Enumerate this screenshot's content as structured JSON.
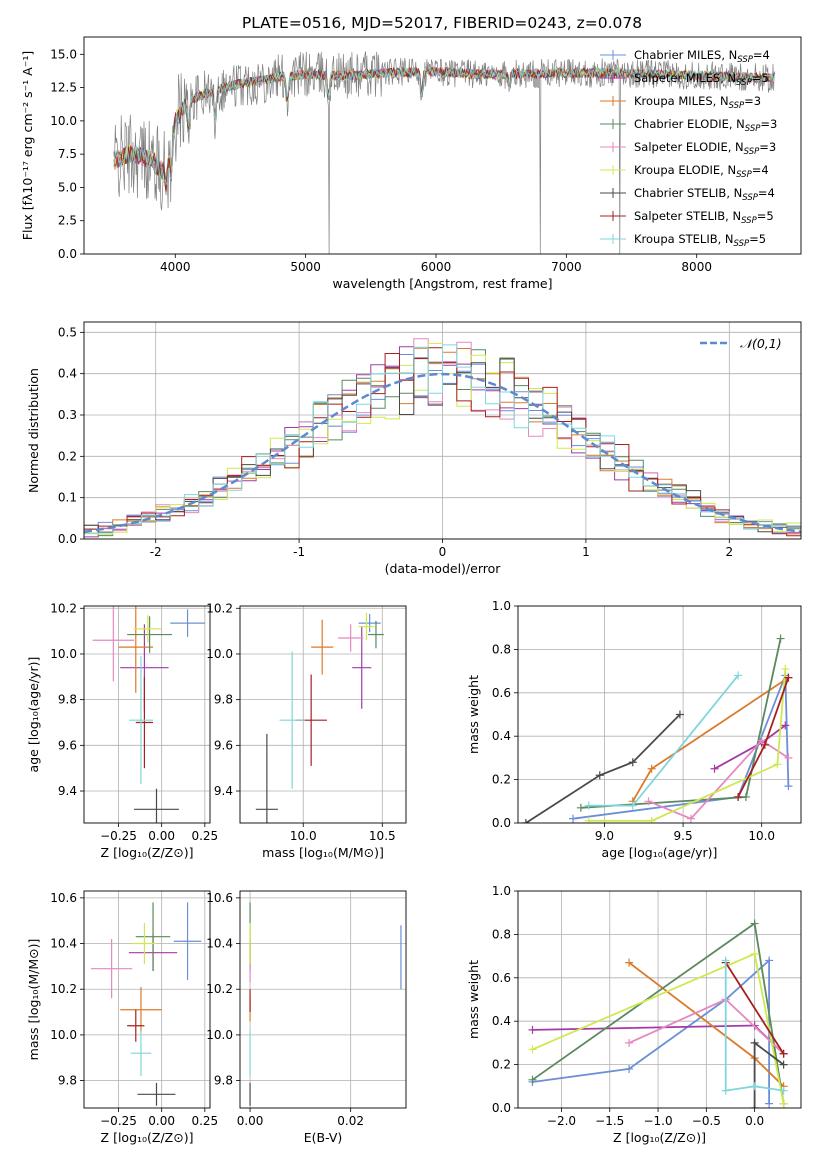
{
  "colors": {
    "Chabrier MILES": "#6a8fd8",
    "Salpeter MILES": "#a23aa8",
    "Kroupa MILES": "#db7a2a",
    "Chabrier ELODIE": "#5a8a5e",
    "Salpeter ELODIE": "#e589c0",
    "Kroupa ELODIE": "#d0e850",
    "Chabrier STELIB": "#4a4a4a",
    "Salpeter STELIB": "#a52020",
    "Kroupa STELIB": "#7fd6dc"
  },
  "chart_data": [
    {
      "id": "spectrum",
      "type": "line",
      "title": "PLATE=0516, MJD=52017, FIBERID=0243, z=0.078",
      "xlabel": "wavelength [Angstrom, rest frame]",
      "ylabel": "Flux [fλ10⁻¹⁷ erg cm⁻² s⁻¹ A⁻¹]",
      "xlim": [
        3300,
        8800
      ],
      "ylim": [
        0,
        16.3
      ],
      "xticks": [
        4000,
        5000,
        6000,
        7000,
        8000
      ],
      "yticks": [
        0.0,
        2.5,
        5.0,
        7.5,
        10.0,
        12.5,
        15.0
      ],
      "legend_position": "upper-right",
      "legend": [
        {
          "name": "Chabrier MILES, N",
          "sub": "SSP",
          "tail": "=4"
        },
        {
          "name": "Salpeter MILES, N",
          "sub": "SSP",
          "tail": "=5"
        },
        {
          "name": "Kroupa MILES, N",
          "sub": "SSP",
          "tail": "=3"
        },
        {
          "name": "Chabrier ELODIE, N",
          "sub": "SSP",
          "tail": "=3"
        },
        {
          "name": "Salpeter ELODIE, N",
          "sub": "SSP",
          "tail": "=3"
        },
        {
          "name": "Kroupa ELODIE, N",
          "sub": "SSP",
          "tail": "=4"
        },
        {
          "name": "Chabrier STELIB, N",
          "sub": "SSP",
          "tail": "=4"
        },
        {
          "name": "Salpeter STELIB, N",
          "sub": "SSP",
          "tail": "=5"
        },
        {
          "name": "Kroupa STELIB, N",
          "sub": "SSP",
          "tail": "=5"
        }
      ],
      "continuum": [
        [
          3530,
          7.0
        ],
        [
          3650,
          7.5
        ],
        [
          3800,
          7.2
        ],
        [
          3930,
          6.0
        ],
        [
          4000,
          10.0
        ],
        [
          4100,
          11.5
        ],
        [
          4300,
          12.3
        ],
        [
          4500,
          12.8
        ],
        [
          4800,
          13.3
        ],
        [
          5000,
          13.5
        ],
        [
          5300,
          13.4
        ],
        [
          5600,
          13.6
        ],
        [
          6000,
          13.7
        ],
        [
          6300,
          13.5
        ],
        [
          6600,
          13.5
        ],
        [
          7000,
          13.6
        ],
        [
          7400,
          13.6
        ],
        [
          8000,
          13.4
        ],
        [
          8600,
          13.2
        ]
      ],
      "absorption_lines": [
        [
          3934,
          5.5
        ],
        [
          3969,
          6.0
        ],
        [
          4102,
          9.5
        ],
        [
          4304,
          10.3
        ],
        [
          4861,
          11.5
        ],
        [
          5175,
          11.8
        ],
        [
          5890,
          12.0
        ],
        [
          6563,
          12.5
        ]
      ],
      "masked_drops": [
        5180,
        6800,
        7410
      ]
    },
    {
      "id": "residuals",
      "type": "bar",
      "xlabel": "(data-model)/error",
      "ylabel": "Normed distribution",
      "xlim": [
        -2.5,
        2.5
      ],
      "ylim": [
        0,
        0.525
      ],
      "xticks": [
        -2,
        -1,
        0,
        1,
        2
      ],
      "yticks": [
        0.0,
        0.1,
        0.2,
        0.3,
        0.4,
        0.5
      ],
      "legend": "𝒩(0,1)",
      "legend_position": "upper-right",
      "bin_width": 0.1,
      "reference": {
        "name": "N(0,1)",
        "mean": 0,
        "sigma": 1
      }
    },
    {
      "id": "age_vs_Z",
      "type": "scatter",
      "xlabel": "Z [log₁₀(Z/Z⊙)]",
      "ylabel": "age  [log₁₀(age/yr)]",
      "xlim": [
        -0.45,
        0.28
      ],
      "ylim": [
        9.26,
        10.21
      ],
      "xticks": [
        -0.25,
        0.0,
        0.25
      ],
      "xticklabels": [
        "−0.25",
        "0.00",
        "0.25"
      ],
      "yticks": [
        9.4,
        9.6,
        9.8,
        10.0,
        10.2
      ],
      "points": [
        {
          "library": "Chabrier MILES",
          "x": 0.15,
          "xerr": 0.1,
          "y": 10.135,
          "yerr": 0.06
        },
        {
          "library": "Salpeter MILES",
          "x": -0.1,
          "xerr": 0.14,
          "y": 9.94,
          "yerr": 0.19
        },
        {
          "library": "Kroupa MILES",
          "x": -0.15,
          "xerr": 0.1,
          "y": 10.03,
          "yerr": 0.2
        },
        {
          "library": "Chabrier ELODIE",
          "x": -0.07,
          "xerr": 0.13,
          "y": 10.085,
          "yerr": 0.08
        },
        {
          "library": "Salpeter ELODIE",
          "x": -0.28,
          "xerr": 0.12,
          "y": 10.06,
          "yerr": 0.18
        },
        {
          "library": "Kroupa ELODIE",
          "x": -0.08,
          "xerr": 0.08,
          "y": 10.11,
          "yerr": 0.06
        },
        {
          "library": "Chabrier STELIB",
          "x": -0.03,
          "xerr": 0.13,
          "y": 9.32,
          "yerr": 0.09
        },
        {
          "library": "Salpeter STELIB",
          "x": -0.1,
          "xerr": 0.05,
          "y": 9.7,
          "yerr": 0.2
        },
        {
          "library": "Kroupa STELIB",
          "x": -0.12,
          "xerr": 0.07,
          "y": 9.71,
          "yerr": 0.28
        }
      ]
    },
    {
      "id": "age_vs_mass",
      "type": "scatter",
      "xlabel": "mass [log₁₀(M/M⊙)]",
      "ylabel": "",
      "xlim": [
        9.6,
        10.65
      ],
      "ylim": [
        9.26,
        10.21
      ],
      "xticks": [
        10.0,
        10.5
      ],
      "xticklabels": [
        "10.0",
        "10.5"
      ],
      "yticks": [
        9.4,
        9.6,
        9.8,
        10.0,
        10.2
      ],
      "points": [
        {
          "library": "Chabrier MILES",
          "x": 10.42,
          "xerr": 0.07,
          "y": 10.135,
          "yerr": 0.04
        },
        {
          "library": "Salpeter MILES",
          "x": 10.37,
          "xerr": 0.06,
          "y": 9.94,
          "yerr": 0.18
        },
        {
          "library": "Kroupa MILES",
          "x": 10.12,
          "xerr": 0.07,
          "y": 10.03,
          "yerr": 0.12
        },
        {
          "library": "Chabrier ELODIE",
          "x": 10.46,
          "xerr": 0.05,
          "y": 10.085,
          "yerr": 0.06
        },
        {
          "library": "Salpeter ELODIE",
          "x": 10.3,
          "xerr": 0.08,
          "y": 10.07,
          "yerr": 0.06
        },
        {
          "library": "Kroupa ELODIE",
          "x": 10.4,
          "xerr": 0.05,
          "y": 10.12,
          "yerr": 0.06
        },
        {
          "library": "Chabrier STELIB",
          "x": 9.77,
          "xerr": 0.07,
          "y": 9.32,
          "yerr": 0.33
        },
        {
          "library": "Salpeter STELIB",
          "x": 10.05,
          "xerr": 0.1,
          "y": 9.71,
          "yerr": 0.2
        },
        {
          "library": "Kroupa STELIB",
          "x": 9.93,
          "xerr": 0.08,
          "y": 9.71,
          "yerr": 0.3
        }
      ]
    },
    {
      "id": "mass_weight_vs_age",
      "type": "line",
      "xlabel": "age  [log₁₀(age/yr)]",
      "ylabel": "mass weight",
      "xlim": [
        8.45,
        10.25
      ],
      "ylim": [
        0,
        1.0
      ],
      "xticks": [
        9.0,
        9.5,
        10.0
      ],
      "xticklabels": [
        "9.0",
        "9.5",
        "10.0"
      ],
      "yticks": [
        0.0,
        0.2,
        0.4,
        0.6,
        0.8,
        1.0
      ],
      "series": [
        {
          "library": "Chabrier MILES",
          "x": [
            8.8,
            9.85,
            10.15,
            10.17
          ],
          "y": [
            0.02,
            0.12,
            0.68,
            0.17
          ]
        },
        {
          "library": "Salpeter MILES",
          "x": [
            9.7,
            10.0,
            10.15
          ],
          "y": [
            0.25,
            0.37,
            0.45
          ]
        },
        {
          "library": "Kroupa MILES",
          "x": [
            9.18,
            9.3,
            10.17
          ],
          "y": [
            0.1,
            0.25,
            0.67
          ]
        },
        {
          "library": "Chabrier ELODIE",
          "x": [
            8.85,
            9.9,
            10.12
          ],
          "y": [
            0.07,
            0.12,
            0.85
          ]
        },
        {
          "library": "Salpeter ELODIE",
          "x": [
            9.28,
            9.55,
            10.0,
            10.17
          ],
          "y": [
            0.1,
            0.02,
            0.38,
            0.3
          ]
        },
        {
          "library": "Kroupa ELODIE",
          "x": [
            8.9,
            9.3,
            10.1,
            10.15
          ],
          "y": [
            0.01,
            0.01,
            0.27,
            0.71
          ]
        },
        {
          "library": "Chabrier STELIB",
          "x": [
            8.5,
            8.97,
            9.18,
            9.48
          ],
          "y": [
            0.0,
            0.22,
            0.28,
            0.5
          ]
        },
        {
          "library": "Salpeter STELIB",
          "x": [
            9.85,
            10.02,
            10.17
          ],
          "y": [
            0.12,
            0.36,
            0.67
          ]
        },
        {
          "library": "Kroupa STELIB",
          "x": [
            8.9,
            9.18,
            9.85
          ],
          "y": [
            0.08,
            0.08,
            0.68
          ]
        }
      ]
    },
    {
      "id": "mass_vs_Z",
      "type": "scatter",
      "xlabel": "Z [log₁₀(Z/Z⊙)]",
      "ylabel": "mass [log₁₀(M/M⊙)]",
      "xlim": [
        -0.45,
        0.28
      ],
      "ylim": [
        9.68,
        10.63
      ],
      "xticks": [
        -0.25,
        0.0,
        0.25
      ],
      "xticklabels": [
        "−0.25",
        "0.00",
        "0.25"
      ],
      "yticks": [
        9.8,
        10.0,
        10.2,
        10.4,
        10.6
      ],
      "points": [
        {
          "library": "Chabrier MILES",
          "x": 0.15,
          "xerr": 0.08,
          "y": 10.41,
          "yerr": 0.17
        },
        {
          "library": "Salpeter MILES",
          "x": -0.05,
          "xerr": 0.14,
          "y": 10.36,
          "yerr": 0.08
        },
        {
          "library": "Kroupa MILES",
          "x": -0.12,
          "xerr": 0.12,
          "y": 10.11,
          "yerr": 0.1
        },
        {
          "library": "Chabrier ELODIE",
          "x": -0.05,
          "xerr": 0.1,
          "y": 10.43,
          "yerr": 0.15
        },
        {
          "library": "Salpeter ELODIE",
          "x": -0.29,
          "xerr": 0.12,
          "y": 10.29,
          "yerr": 0.13
        },
        {
          "library": "Kroupa ELODIE",
          "x": -0.1,
          "xerr": 0.07,
          "y": 10.4,
          "yerr": 0.09
        },
        {
          "library": "Chabrier STELIB",
          "x": -0.03,
          "xerr": 0.11,
          "y": 9.74,
          "yerr": 0.05
        },
        {
          "library": "Salpeter STELIB",
          "x": -0.15,
          "xerr": 0.05,
          "y": 10.04,
          "yerr": 0.07
        },
        {
          "library": "Kroupa STELIB",
          "x": -0.12,
          "xerr": 0.06,
          "y": 9.92,
          "yerr": 0.1
        }
      ]
    },
    {
      "id": "mass_vs_ebv",
      "type": "scatter",
      "xlabel": "E(B-V)",
      "ylabel": "",
      "xlim": [
        -0.002,
        0.031
      ],
      "ylim": [
        9.68,
        10.63
      ],
      "xticks": [
        0.0,
        0.02
      ],
      "xticklabels": [
        "0.00",
        "0.02"
      ],
      "yticks": [
        9.8,
        10.0,
        10.2,
        10.4,
        10.6
      ],
      "points": [
        {
          "library": "Chabrier MILES",
          "x": 0.03,
          "xerr": 0,
          "y": 10.34,
          "yerr": 0.14
        },
        {
          "library": "Salpeter MILES",
          "x": 0.0,
          "xerr": 0,
          "y": 10.36,
          "yerr": 0.05
        },
        {
          "library": "Kroupa MILES",
          "x": 0.0,
          "xerr": 0,
          "y": 10.11,
          "yerr": 0.05
        },
        {
          "library": "Chabrier ELODIE",
          "x": 0.0,
          "xerr": 0,
          "y": 10.43,
          "yerr": 0.15
        },
        {
          "library": "Salpeter ELODIE",
          "x": 0.0,
          "xerr": 0,
          "y": 10.29,
          "yerr": 0.06
        },
        {
          "library": "Kroupa ELODIE",
          "x": 0.0,
          "xerr": 0,
          "y": 10.4,
          "yerr": 0.09
        },
        {
          "library": "Chabrier STELIB",
          "x": 0.0,
          "xerr": 0,
          "y": 9.74,
          "yerr": 0.05
        },
        {
          "library": "Salpeter STELIB",
          "x": 0.0,
          "xerr": 0,
          "y": 10.15,
          "yerr": 0.05
        },
        {
          "library": "Kroupa STELIB",
          "x": 0.0,
          "xerr": 0,
          "y": 9.92,
          "yerr": 0.1
        }
      ]
    },
    {
      "id": "mass_weight_vs_Z",
      "type": "line",
      "xlabel": "Z [log₁₀(Z/Z⊙)]",
      "ylabel": "mass weight",
      "xlim": [
        -2.45,
        0.48
      ],
      "ylim": [
        0,
        1.0
      ],
      "xticks": [
        -2.0,
        -1.5,
        -1.0,
        -0.5,
        0.0
      ],
      "xticklabels": [
        "−2.0",
        "−1.5",
        "−1.0",
        "−0.5",
        "0.0"
      ],
      "yticks": [
        0.0,
        0.2,
        0.4,
        0.6,
        0.8,
        1.0
      ],
      "series": [
        {
          "library": "Chabrier MILES",
          "x": [
            -2.3,
            -1.3,
            -0.3,
            0.15,
            0.15
          ],
          "y": [
            0.12,
            0.18,
            0.5,
            0.68,
            0.02
          ]
        },
        {
          "library": "Salpeter MILES",
          "x": [
            -2.3,
            0.0,
            0.3
          ],
          "y": [
            0.36,
            0.38,
            0.25
          ]
        },
        {
          "library": "Kroupa MILES",
          "x": [
            -1.3,
            0.0,
            0.3
          ],
          "y": [
            0.67,
            0.23,
            0.1
          ]
        },
        {
          "library": "Chabrier ELODIE",
          "x": [
            -2.3,
            0.0,
            0.3
          ],
          "y": [
            0.13,
            0.85,
            0.02
          ]
        },
        {
          "library": "Salpeter ELODIE",
          "x": [
            -1.3,
            -0.3,
            0.3
          ],
          "y": [
            0.3,
            0.5,
            0.25
          ]
        },
        {
          "library": "Kroupa ELODIE",
          "x": [
            -2.3,
            0.0,
            0.3
          ],
          "y": [
            0.27,
            0.71,
            0.02
          ]
        },
        {
          "library": "Chabrier STELIB",
          "x": [
            0.0,
            0.0,
            0.3
          ],
          "y": [
            0.0,
            0.3,
            0.2
          ]
        },
        {
          "library": "Salpeter STELIB",
          "x": [
            -0.3,
            0.3
          ],
          "y": [
            0.67,
            0.25
          ]
        },
        {
          "library": "Kroupa STELIB",
          "x": [
            -0.3,
            -0.3,
            0.0,
            0.3
          ],
          "y": [
            0.68,
            0.08,
            0.1,
            0.08
          ]
        }
      ]
    }
  ]
}
